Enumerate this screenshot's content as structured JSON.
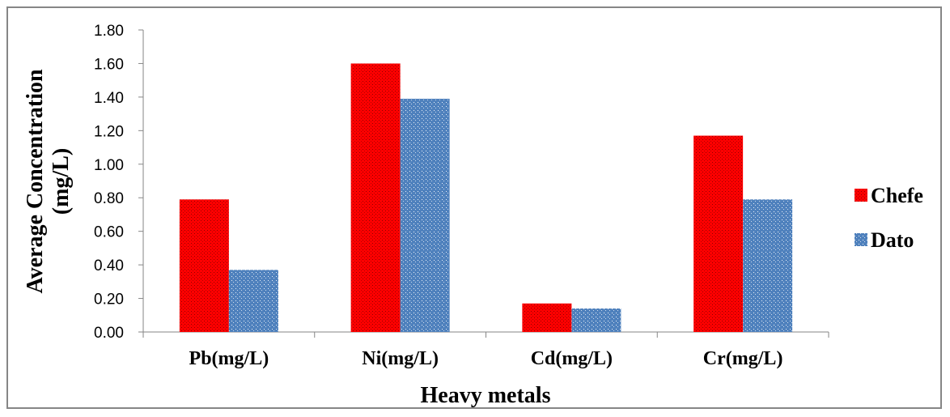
{
  "chart_data": {
    "type": "bar",
    "xlabel": "Heavy metals",
    "ylabel_lines": [
      "Average Concentration",
      "(mg/L)"
    ],
    "categories": [
      "Pb(mg/L)",
      "Ni(mg/L)",
      "Cd(mg/L)",
      "Cr(mg/L)"
    ],
    "series": [
      {
        "name": "Chefe",
        "values": [
          0.79,
          1.6,
          0.17,
          1.17
        ],
        "color": "#ff0000"
      },
      {
        "name": "Dato",
        "values": [
          0.37,
          1.39,
          0.14,
          0.79
        ],
        "color": "#4f81bd"
      }
    ],
    "ylim": [
      0,
      1.8
    ],
    "yticks": [
      "0.00",
      "0.20",
      "0.40",
      "0.60",
      "0.80",
      "1.00",
      "1.20",
      "1.40",
      "1.60",
      "1.80"
    ],
    "grid": false,
    "legend": "right"
  }
}
